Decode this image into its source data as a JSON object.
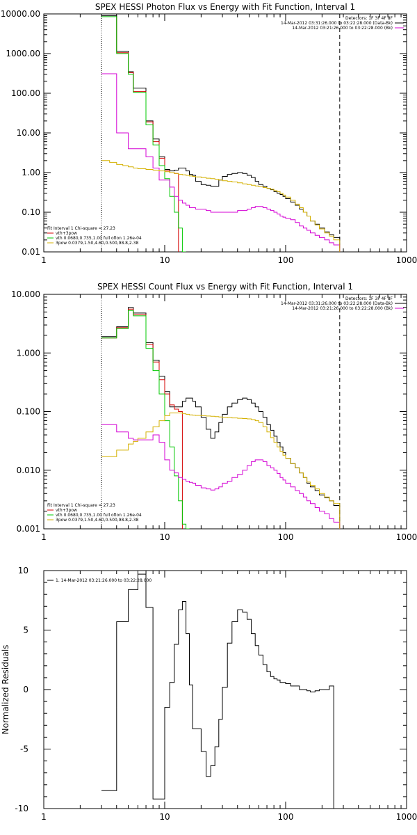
{
  "chart_data": [
    {
      "type": "line",
      "title": "SPEX HESSI Photon Flux vs Energy with Fit Function, Interval 1",
      "xscale": "log",
      "yscale": "log",
      "xlim": [
        1,
        1000
      ],
      "ylim": [
        0.01,
        10000
      ],
      "xtick_labels": [
        "1",
        "10",
        "100",
        "1000"
      ],
      "ytick_labels": [
        "0.01",
        "0.10",
        "1.00",
        "10.00",
        "100.00",
        "1000.00",
        "10000.00"
      ],
      "header": [
        {
          "text": "Detectors: 1F 3F 4F 8F",
          "color": "#000000",
          "marker": false
        },
        {
          "text": "14-Mar-2012 03:31:26.000 to 03:22:28.000 (Data-Bk)",
          "color": "#000000",
          "marker": true
        },
        {
          "text": "14-Mar-2012 03:21:26.000 to 03:22:28.000 (Bk)",
          "color": "#d400d4",
          "marker": true
        }
      ],
      "fit_legend": [
        {
          "text": "Fit Interval 1    Chi-square = 27.23",
          "color": "#000000",
          "marker": false
        },
        {
          "text": "vth+3pow",
          "color": "#d40000",
          "marker": true
        },
        {
          "text": "vth 0.0680,0.735,1.00  full ofion 1.26e-04",
          "color": "#00c800",
          "marker": true
        },
        {
          "text": "3pow 0.0379,1.50,4.60,0.500,98.8,2.38",
          "color": "#d4b000",
          "marker": true
        }
      ],
      "vlines": [
        {
          "x": 3,
          "style": "dotted"
        },
        {
          "x": 280,
          "style": "dashed"
        }
      ],
      "edges": [
        3,
        3.5,
        4,
        4.5,
        5,
        5.5,
        6,
        7,
        8,
        9,
        10,
        11,
        12,
        13,
        14,
        15,
        16,
        17,
        18,
        20,
        22,
        24,
        26,
        28,
        30,
        33,
        36,
        40,
        44,
        48,
        52,
        56,
        60,
        65,
        70,
        75,
        80,
        85,
        90,
        95,
        100,
        110,
        120,
        130,
        140,
        150,
        160,
        175,
        190,
        210,
        230,
        250,
        280
      ],
      "series": [
        {
          "color": "#000000",
          "values": [
            9000,
            9000,
            1150,
            1150,
            350,
            135,
            135,
            20,
            7,
            2.5,
            1.2,
            1.1,
            1.15,
            1.3,
            1.3,
            1.1,
            0.9,
            0.85,
            0.6,
            0.5,
            0.48,
            0.45,
            0.45,
            0.65,
            0.8,
            0.9,
            0.95,
            1.0,
            0.95,
            0.85,
            0.75,
            0.6,
            0.5,
            0.45,
            0.4,
            0.37,
            0.33,
            0.3,
            0.28,
            0.25,
            0.22,
            0.18,
            0.15,
            0.12,
            0.1,
            0.08,
            0.06,
            0.05,
            0.04,
            0.032,
            0.027,
            0.023
          ]
        },
        {
          "color": "#d40000",
          "values": [
            8500,
            8500,
            1050,
            1050,
            330,
            110,
            110,
            19,
            6,
            2.3,
            1.1,
            1.0,
            0.95
          ]
        },
        {
          "color": "#00c800",
          "values": [
            8500,
            8500,
            1000,
            1000,
            300,
            105,
            105,
            16,
            5,
            1.5,
            0.7,
            0.25,
            0.1,
            0.04,
            0.01
          ]
        },
        {
          "color": "#d400d4",
          "values": [
            310,
            310,
            10,
            10,
            4,
            4,
            4,
            2.5,
            1.3,
            0.65,
            0.65,
            0.43,
            0.25,
            0.2,
            0.17,
            0.15,
            0.13,
            0.13,
            0.12,
            0.12,
            0.11,
            0.1,
            0.1,
            0.1,
            0.1,
            0.1,
            0.1,
            0.11,
            0.11,
            0.12,
            0.13,
            0.14,
            0.14,
            0.13,
            0.12,
            0.11,
            0.1,
            0.09,
            0.08,
            0.075,
            0.07,
            0.065,
            0.055,
            0.045,
            0.04,
            0.035,
            0.03,
            0.026,
            0.023,
            0.02,
            0.017,
            0.015
          ]
        },
        {
          "color": "#d4b000",
          "values": [
            2.0,
            1.8,
            1.6,
            1.5,
            1.4,
            1.3,
            1.25,
            1.2,
            1.15,
            1.1,
            1.05,
            1.0,
            0.95,
            0.9,
            0.88,
            0.85,
            0.82,
            0.8,
            0.78,
            0.75,
            0.72,
            0.7,
            0.68,
            0.65,
            0.62,
            0.6,
            0.58,
            0.55,
            0.52,
            0.5,
            0.48,
            0.46,
            0.44,
            0.42,
            0.4,
            0.38,
            0.35,
            0.33,
            0.3,
            0.27,
            0.24,
            0.2,
            0.16,
            0.13,
            0.1,
            0.08,
            0.06,
            0.048,
            0.038,
            0.03,
            0.025,
            0.02
          ]
        }
      ]
    },
    {
      "type": "line",
      "title": "SPEX HESSI Count Flux vs Energy with Fit Function, Interval 1",
      "xscale": "log",
      "yscale": "log",
      "xlim": [
        1,
        1000
      ],
      "ylim": [
        0.001,
        10
      ],
      "xtick_labels": [
        "1",
        "10",
        "100",
        "1000"
      ],
      "ytick_labels": [
        "0.001",
        "0.010",
        "0.100",
        "1.000",
        "10.000"
      ],
      "header": [
        {
          "text": "Detectors: 1F 3F 4F 8F",
          "color": "#000000",
          "marker": false
        },
        {
          "text": "14-Mar-2012 03:31:26.000 to 03:22:28.000 (Data-Bk)",
          "color": "#000000",
          "marker": true
        },
        {
          "text": "14-Mar-2012 03:21:26.000 to 03:22:28.000 (Bk)",
          "color": "#d400d4",
          "marker": true
        }
      ],
      "fit_legend": [
        {
          "text": "Fit Interval 1    Chi-square = 27.23",
          "color": "#000000",
          "marker": false
        },
        {
          "text": "vth+3pow",
          "color": "#d40000",
          "marker": true
        },
        {
          "text": "vth 0.0680,0.735,1.00  full ofion 1.26e-04",
          "color": "#00c800",
          "marker": true
        },
        {
          "text": "3pow 0.0379,1.50,4.60,0.500,98.8,2.38",
          "color": "#d4b000",
          "marker": true
        }
      ],
      "vlines": [
        {
          "x": 3,
          "style": "dotted"
        },
        {
          "x": 280,
          "style": "dashed"
        }
      ],
      "edges": [
        3,
        4,
        5,
        5.5,
        6,
        7,
        8,
        9,
        10,
        11,
        12,
        13,
        14,
        15,
        16,
        17,
        18,
        20,
        22,
        24,
        26,
        28,
        30,
        33,
        36,
        40,
        44,
        48,
        52,
        56,
        60,
        65,
        70,
        75,
        80,
        85,
        90,
        95,
        100,
        110,
        120,
        130,
        140,
        150,
        160,
        175,
        190,
        210,
        230,
        250,
        280
      ],
      "series": [
        {
          "color": "#000000",
          "values": [
            1.9,
            2.8,
            6.0,
            4.8,
            4.8,
            1.5,
            0.75,
            0.4,
            0.22,
            0.12,
            0.12,
            0.12,
            0.15,
            0.17,
            0.17,
            0.15,
            0.12,
            0.08,
            0.05,
            0.035,
            0.045,
            0.065,
            0.09,
            0.12,
            0.14,
            0.16,
            0.17,
            0.16,
            0.14,
            0.12,
            0.1,
            0.08,
            0.06,
            0.048,
            0.038,
            0.03,
            0.025,
            0.02,
            0.016,
            0.013,
            0.011,
            0.009,
            0.0075,
            0.006,
            0.0052,
            0.0045,
            0.0038,
            0.0034,
            0.003,
            0.0025
          ]
        },
        {
          "color": "#d40000",
          "values": [
            1.8,
            2.7,
            5.6,
            4.5,
            4.5,
            1.4,
            0.7,
            0.35,
            0.2,
            0.13,
            0.11,
            0.1
          ]
        },
        {
          "color": "#00c800",
          "values": [
            1.8,
            2.6,
            5.3,
            4.3,
            4.3,
            1.2,
            0.5,
            0.2,
            0.07,
            0.025,
            0.008,
            0.003,
            0.0012,
            0.001
          ]
        },
        {
          "color": "#d400d4",
          "values": [
            0.06,
            0.045,
            0.035,
            0.033,
            0.033,
            0.033,
            0.04,
            0.03,
            0.015,
            0.01,
            0.009,
            0.0075,
            0.007,
            0.0065,
            0.0062,
            0.006,
            0.0055,
            0.005,
            0.0048,
            0.0046,
            0.0048,
            0.0052,
            0.006,
            0.0065,
            0.0075,
            0.0085,
            0.01,
            0.012,
            0.014,
            0.015,
            0.015,
            0.014,
            0.012,
            0.011,
            0.01,
            0.0088,
            0.0075,
            0.0068,
            0.006,
            0.0052,
            0.0045,
            0.004,
            0.0035,
            0.003,
            0.0027,
            0.0023,
            0.002,
            0.0018,
            0.0015,
            0.0013
          ]
        },
        {
          "color": "#d4b000",
          "values": [
            0.017,
            0.022,
            0.028,
            0.031,
            0.035,
            0.045,
            0.055,
            0.07,
            0.085,
            0.095,
            0.095,
            0.095,
            0.092,
            0.09,
            0.088,
            0.087,
            0.086,
            0.085,
            0.084,
            0.083,
            0.082,
            0.081,
            0.08,
            0.079,
            0.078,
            0.077,
            0.076,
            0.075,
            0.073,
            0.07,
            0.065,
            0.055,
            0.045,
            0.036,
            0.03,
            0.025,
            0.021,
            0.018,
            0.016,
            0.013,
            0.011,
            0.009,
            0.0075,
            0.0063,
            0.0055,
            0.0048,
            0.004,
            0.0035,
            0.003,
            0.0027
          ]
        }
      ]
    },
    {
      "type": "line",
      "title": "",
      "xscale": "log",
      "yscale": "linear",
      "xlim": [
        1,
        1000
      ],
      "ylim": [
        -10,
        10
      ],
      "ylabel": "Normalized Residuals",
      "xtick_labels": [
        "1",
        "10",
        "100",
        "1000"
      ],
      "ytick_labels": [
        "10",
        "5",
        "0",
        "-5",
        "-10"
      ],
      "header": [],
      "fit_legend": [
        {
          "text": "1. 14-Mar-2012 03:21:26.000 to 03:22:28.000",
          "color": "#000000",
          "marker": true
        }
      ],
      "vlines": [],
      "edges": [
        3,
        4,
        5,
        5.5,
        6,
        7,
        8,
        9,
        10,
        11,
        12,
        13,
        14,
        15,
        16,
        17,
        18,
        20,
        22,
        24,
        26,
        28,
        30,
        33,
        36,
        40,
        44,
        48,
        52,
        56,
        60,
        65,
        70,
        75,
        80,
        85,
        90,
        95,
        100,
        110,
        120,
        130,
        140,
        150,
        160,
        175,
        190,
        210,
        230,
        250,
        280
      ],
      "series": [
        {
          "color": "#000000",
          "values": [
            -8.5,
            5.7,
            8.4,
            8.4,
            9.7,
            6.9,
            -9.2,
            -9.2,
            -1.5,
            0.6,
            3.8,
            6.7,
            7.4,
            4.7,
            0.4,
            -3.3,
            -3.3,
            -5.2,
            -7.3,
            -6.4,
            -4.8,
            -2.5,
            0.2,
            3.9,
            5.7,
            6.7,
            6.5,
            5.9,
            4.7,
            3.7,
            2.9,
            2.1,
            1.5,
            1.1,
            0.9,
            0.8,
            0.6,
            0.6,
            0.5,
            0.3,
            0.3,
            0.0,
            0.0,
            -0.1,
            -0.2,
            -0.1,
            0.0,
            0.0,
            0.3,
            -10
          ]
        }
      ]
    }
  ]
}
